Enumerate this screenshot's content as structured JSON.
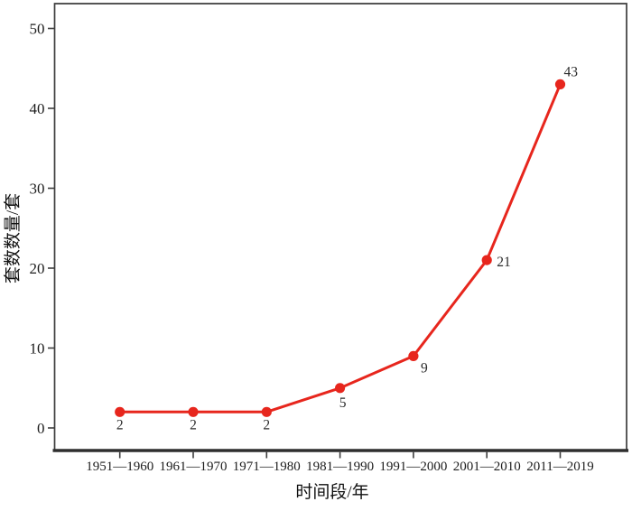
{
  "chart_data": {
    "type": "line",
    "title": "",
    "categories": [
      "1951—1960",
      "1961—1970",
      "1971—1980",
      "1981—1990",
      "1991—2000",
      "2001—2010",
      "2011—2019"
    ],
    "values": [
      2,
      2,
      2,
      5,
      9,
      21,
      43
    ],
    "point_labels": [
      "2",
      "2",
      "2",
      "5",
      "9",
      "21",
      "43"
    ],
    "xlabel": "时间段/年",
    "ylabel": "套数数量/套",
    "ylim": [
      0,
      50
    ],
    "yticks": [
      0,
      10,
      20,
      30,
      40,
      50
    ],
    "grid": false,
    "legend_position": "none",
    "colors": {
      "line": "#e7261d",
      "marker": "#e7261d",
      "axis": "#3d3d3d",
      "bottom_axis": "#2e2e2e",
      "text": "#1c1c1c",
      "background": "#ffffff"
    },
    "label_offsets": [
      [
        0,
        19,
        "middle"
      ],
      [
        0,
        19,
        "middle"
      ],
      [
        0,
        19,
        "middle"
      ],
      [
        3,
        21,
        "middle"
      ],
      [
        12,
        18,
        "middle"
      ],
      [
        11,
        7,
        "start"
      ],
      [
        4,
        -9,
        "start"
      ]
    ]
  }
}
